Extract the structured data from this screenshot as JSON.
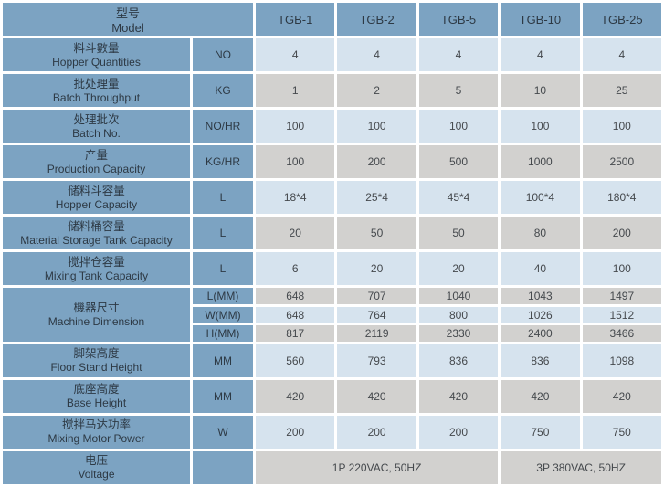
{
  "header": {
    "model_zh": "型号",
    "model_en": "Model",
    "models": [
      "TGB-1",
      "TGB-2",
      "TGB-5",
      "TGB-10",
      "TGB-25"
    ]
  },
  "rows": [
    {
      "zh": "料斗數量",
      "en": "Hopper Quantities",
      "unit": "NO",
      "values": [
        "4",
        "4",
        "4",
        "4",
        "4"
      ]
    },
    {
      "zh": "批处理量",
      "en": "Batch Throughput",
      "unit": "KG",
      "values": [
        "1",
        "2",
        "5",
        "10",
        "25"
      ]
    },
    {
      "zh": "处理批次",
      "en": "Batch No.",
      "unit": "NO/HR",
      "values": [
        "100",
        "100",
        "100",
        "100",
        "100"
      ]
    },
    {
      "zh": "产量",
      "en": "Production Capacity",
      "unit": "KG/HR",
      "values": [
        "100",
        "200",
        "500",
        "1000",
        "2500"
      ]
    },
    {
      "zh": "储料斗容量",
      "en": "Hopper Capacity",
      "unit": "L",
      "values": [
        "18*4",
        "25*4",
        "45*4",
        "100*4",
        "180*4"
      ]
    },
    {
      "zh": "储料桶容量",
      "en": "Material Storage Tank Capacity",
      "unit": "L",
      "values": [
        "20",
        "50",
        "50",
        "80",
        "200"
      ]
    },
    {
      "zh": "搅拌仓容量",
      "en": "Mixing Tank Capacity",
      "unit": "L",
      "values": [
        "6",
        "20",
        "20",
        "40",
        "100"
      ]
    }
  ],
  "machine_dimension": {
    "zh": "機器尺寸",
    "en": "Machine Dimension",
    "subrows": [
      {
        "unit": "L(MM)",
        "values": [
          "648",
          "707",
          "1040",
          "1043",
          "1497"
        ]
      },
      {
        "unit": "W(MM)",
        "values": [
          "648",
          "764",
          "800",
          "1026",
          "1512"
        ]
      },
      {
        "unit": "H(MM)",
        "values": [
          "817",
          "2119",
          "2330",
          "2400",
          "3466"
        ]
      }
    ]
  },
  "rows2": [
    {
      "zh": "脚架高度",
      "en": "Floor Stand Height",
      "unit": "MM",
      "values": [
        "560",
        "793",
        "836",
        "836",
        "1098"
      ]
    },
    {
      "zh": "底座高度",
      "en": "Base Height",
      "unit": "MM",
      "values": [
        "420",
        "420",
        "420",
        "420",
        "420"
      ]
    },
    {
      "zh": "搅拌马达功率",
      "en": "Mixing Motor Power",
      "unit": "W",
      "values": [
        "200",
        "200",
        "200",
        "750",
        "750"
      ]
    }
  ],
  "voltage": {
    "zh": "电压",
    "en": "Voltage",
    "left": "1P 220VAC, 50HZ",
    "right": "3P 380VAC, 50HZ"
  },
  "colors": {
    "cell_blue": "#7CA3C2",
    "cell_light_blue": "#D6E3EE",
    "cell_gray": "#D2D1CF",
    "gap_white": "#FFFFFF",
    "label_text": "#2D3944",
    "value_text": "#45494D"
  }
}
